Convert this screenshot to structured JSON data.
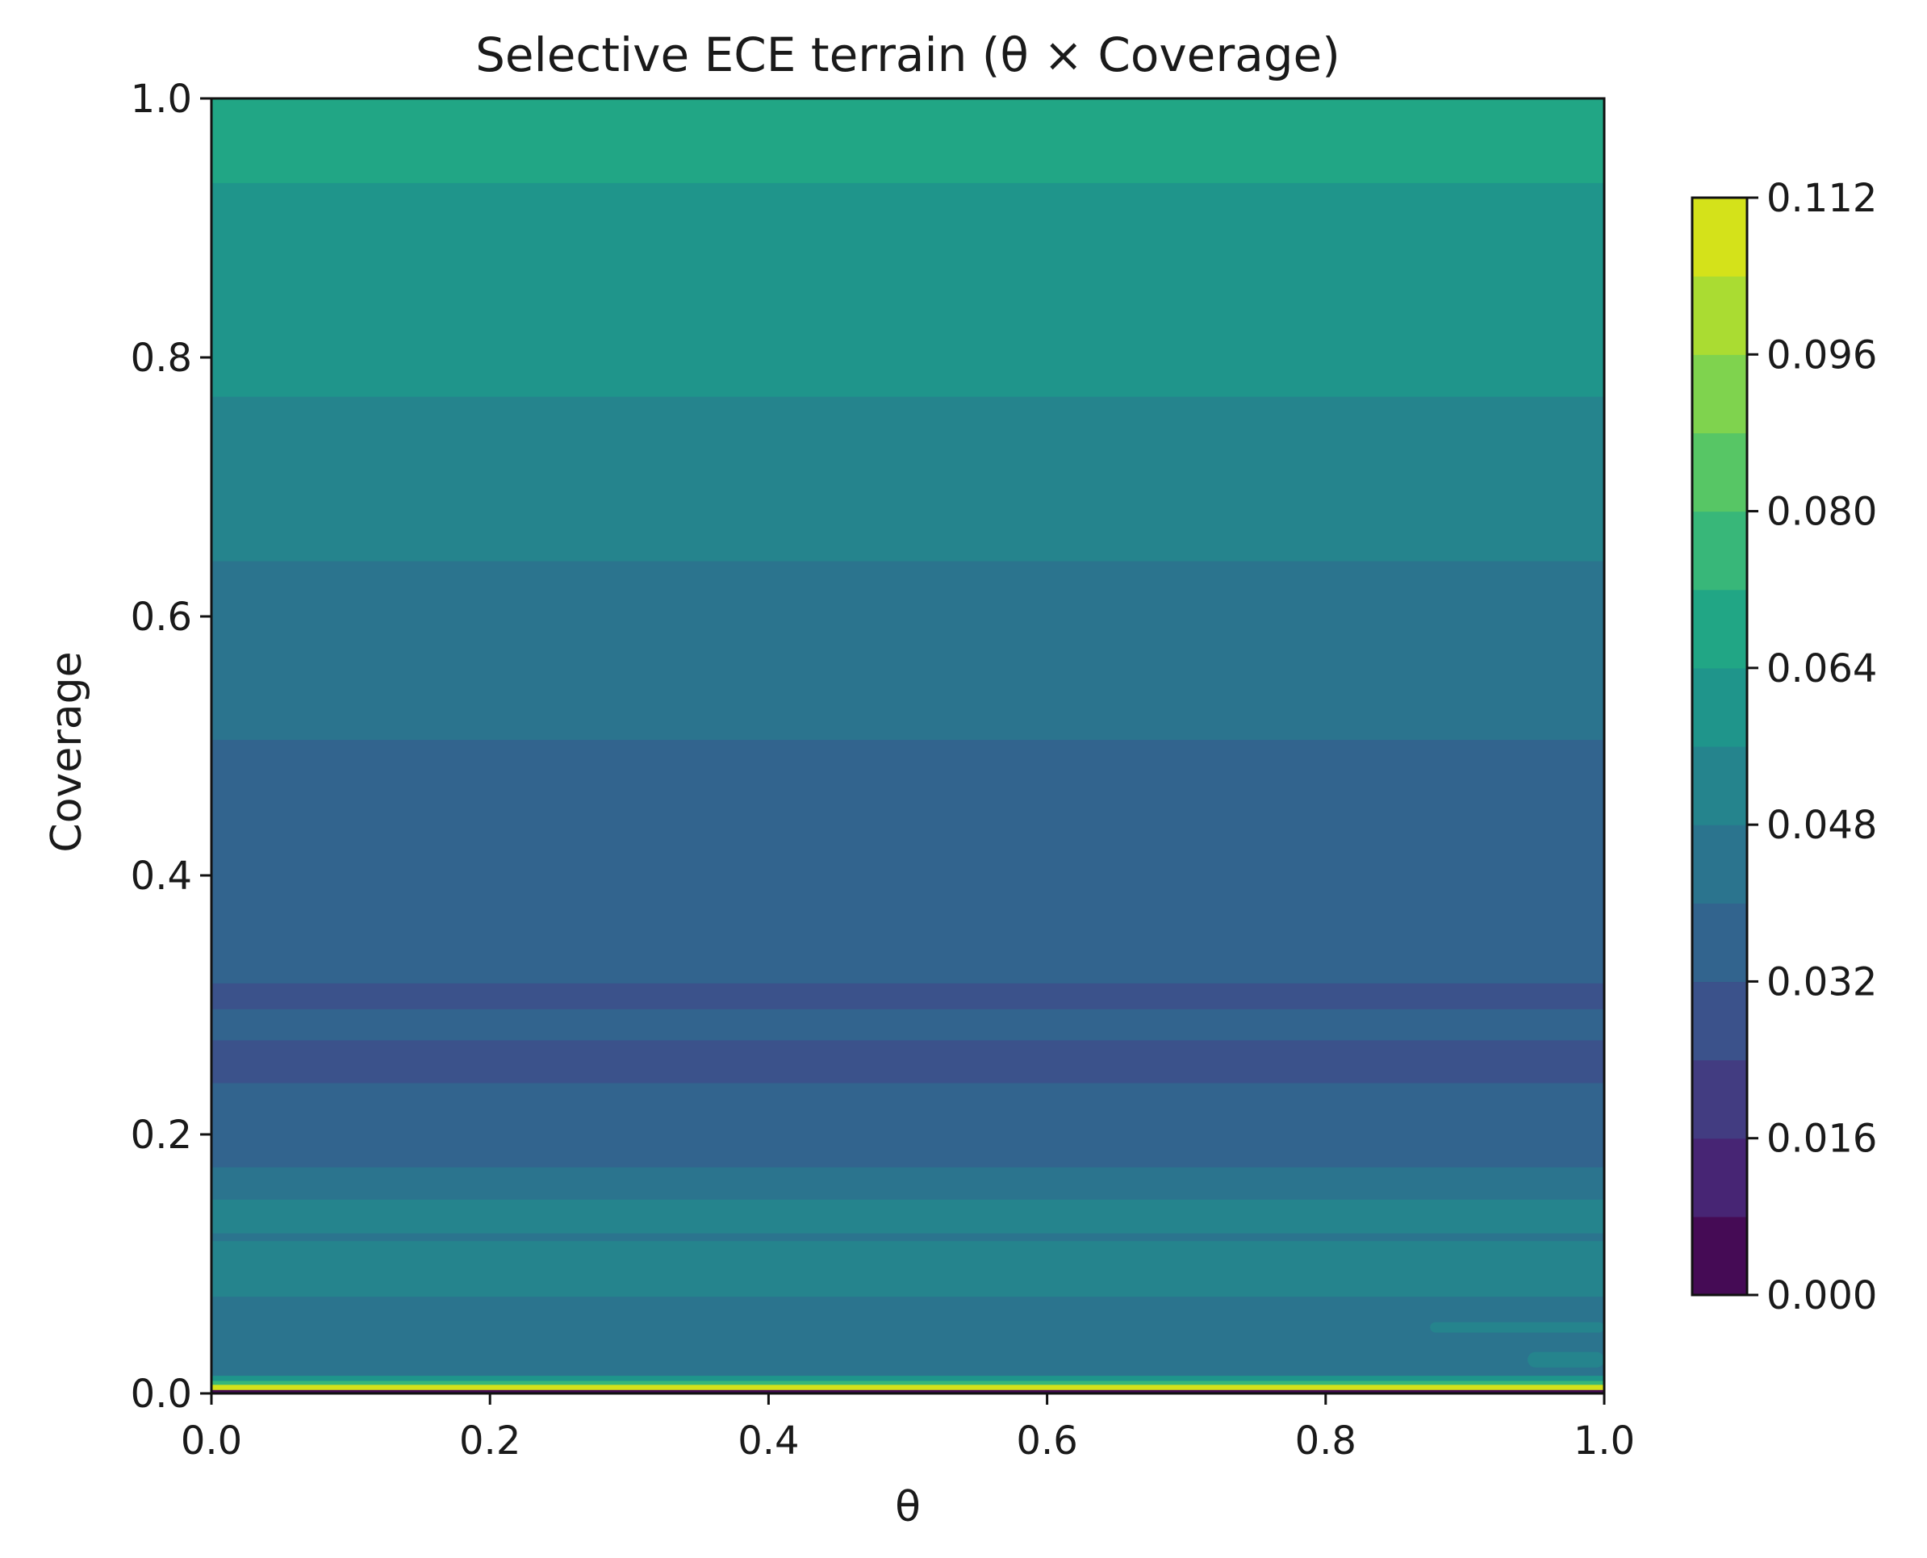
{
  "chart_data": {
    "type": "heatmap",
    "subtype": "filled-contour",
    "title": "Selective ECE terrain (θ × Coverage)",
    "xlabel": "θ",
    "ylabel": "Coverage",
    "xlim": [
      0.0,
      1.0
    ],
    "ylim": [
      0.0,
      1.0
    ],
    "x_ticks": [
      "0.0",
      "0.2",
      "0.4",
      "0.6",
      "0.8",
      "1.0"
    ],
    "y_ticks": [
      "0.0",
      "0.2",
      "0.4",
      "0.6",
      "0.8",
      "1.0"
    ],
    "grid": false,
    "colorbar": {
      "colormap": "viridis",
      "range": [
        0.0,
        0.112
      ],
      "levels": [
        0.0,
        0.008,
        0.016,
        0.024,
        0.032,
        0.04,
        0.048,
        0.056,
        0.064,
        0.072,
        0.08,
        0.088,
        0.096,
        0.104,
        0.112
      ],
      "level_colors": [
        "#450b55",
        "#472574",
        "#423c81",
        "#3b528b",
        "#32648e",
        "#2b748e",
        "#25848d",
        "#1f958b",
        "#21a685",
        "#38b779",
        "#57c665",
        "#7fd34e",
        "#aadc32",
        "#d4e21a",
        "#f4e61e"
      ],
      "tick_labels": [
        "0.000",
        "0.016",
        "0.032",
        "0.048",
        "0.064",
        "0.080",
        "0.096",
        "0.112"
      ]
    },
    "bands": [
      {
        "cov_from": 0.0,
        "cov_to": 0.003,
        "ece_level": 0.0
      },
      {
        "cov_from": 0.003,
        "cov_to": 0.007,
        "ece_level": 0.104
      },
      {
        "cov_from": 0.007,
        "cov_to": 0.01,
        "ece_level": 0.072
      },
      {
        "cov_from": 0.01,
        "cov_to": 0.014,
        "ece_level": 0.056
      },
      {
        "cov_from": 0.014,
        "cov_to": 0.075,
        "ece_level": 0.04
      },
      {
        "cov_from": 0.075,
        "cov_to": 0.118,
        "ece_level": 0.048
      },
      {
        "cov_from": 0.118,
        "cov_to": 0.124,
        "ece_level": 0.04
      },
      {
        "cov_from": 0.124,
        "cov_to": 0.15,
        "ece_level": 0.048
      },
      {
        "cov_from": 0.15,
        "cov_to": 0.175,
        "ece_level": 0.04
      },
      {
        "cov_from": 0.175,
        "cov_to": 0.24,
        "ece_level": 0.032
      },
      {
        "cov_from": 0.24,
        "cov_to": 0.273,
        "ece_level": 0.024
      },
      {
        "cov_from": 0.273,
        "cov_to": 0.297,
        "ece_level": 0.032
      },
      {
        "cov_from": 0.297,
        "cov_to": 0.317,
        "ece_level": 0.024
      },
      {
        "cov_from": 0.317,
        "cov_to": 0.505,
        "ece_level": 0.032
      },
      {
        "cov_from": 0.505,
        "cov_to": 0.643,
        "ece_level": 0.04
      },
      {
        "cov_from": 0.643,
        "cov_to": 0.77,
        "ece_level": 0.048
      },
      {
        "cov_from": 0.77,
        "cov_to": 0.935,
        "ece_level": 0.056
      },
      {
        "cov_from": 0.935,
        "cov_to": 1.0,
        "ece_level": 0.064
      }
    ],
    "patches": [
      {
        "theta_from": 0.875,
        "theta_to": 1.0,
        "cov_from": 0.047,
        "cov_to": 0.055,
        "ece_level": 0.048
      },
      {
        "theta_from": 0.945,
        "theta_to": 1.0,
        "cov_from": 0.02,
        "cov_to": 0.032,
        "ece_level": 0.048
      }
    ]
  }
}
